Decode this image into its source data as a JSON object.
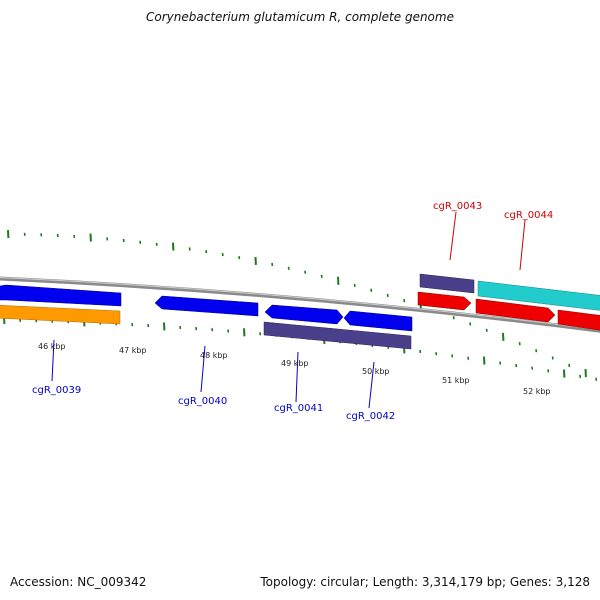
{
  "title": "Corynebacterium glutamicum R, complete genome",
  "footer": {
    "accession": "Accession: NC_009342",
    "summary": "Topology: circular; Length: 3,314,179 bp; Genes: 3,128"
  },
  "ticks": [
    "46 kbp",
    "47 kbp",
    "48 kbp",
    "49 kbp",
    "50 kbp",
    "51 kbp",
    "52 kbp"
  ],
  "genes": [
    {
      "id": "cgR_0039",
      "label": "cgR_0039",
      "color": "#0000cc",
      "strand": "reverse"
    },
    {
      "id": "cgR_0040",
      "label": "cgR_0040",
      "color": "#0000cc",
      "strand": "reverse"
    },
    {
      "id": "cgR_0041",
      "label": "cgR_0041",
      "color": "#0000cc",
      "strand": "forward"
    },
    {
      "id": "cgR_0042",
      "label": "cgR_0042",
      "color": "#0000cc",
      "strand": "forward"
    },
    {
      "id": "cgR_0043",
      "label": "cgR_0043",
      "color": "#cc0000",
      "strand": "forward"
    },
    {
      "id": "cgR_0044",
      "label": "cgR_0044",
      "color": "#cc0000",
      "strand": "forward"
    }
  ],
  "colors": {
    "backbone": "#8a8a8a",
    "tick": "#1e7a1e",
    "cds_blue": "#0000ee",
    "cds_red": "#ee0000",
    "gene_purple": "#4a3f8a",
    "orange": "#ff9900",
    "cyan": "#22cccc",
    "label_blue": "#0000cc",
    "label_red": "#cc0000"
  }
}
